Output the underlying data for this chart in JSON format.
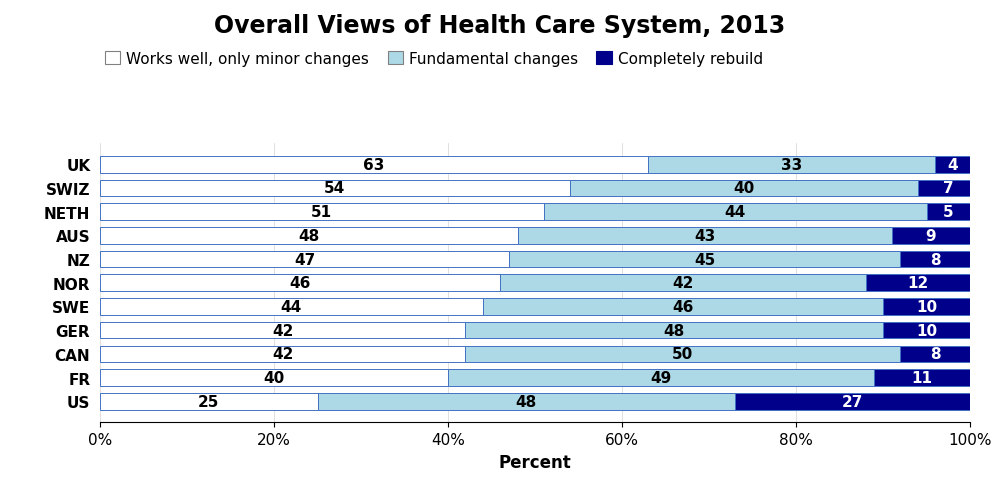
{
  "title": "Overall Views of Health Care System, 2013",
  "xlabel": "Percent",
  "categories": [
    "UK",
    "SWIZ",
    "NETH",
    "AUS",
    "NZ",
    "NOR",
    "SWE",
    "GER",
    "CAN",
    "FR",
    "US"
  ],
  "works_well": [
    63,
    54,
    51,
    48,
    47,
    46,
    44,
    42,
    42,
    40,
    25
  ],
  "fundamental": [
    33,
    40,
    44,
    43,
    45,
    42,
    46,
    48,
    50,
    49,
    48
  ],
  "rebuild": [
    4,
    7,
    5,
    9,
    8,
    12,
    10,
    10,
    8,
    11,
    27
  ],
  "color_works": "#ffffff",
  "color_fundamental": "#add8e6",
  "color_rebuild": "#00008b",
  "border_color": "#4472c4",
  "legend_labels": [
    "Works well, only minor changes",
    "Fundamental changes",
    "Completely rebuild"
  ],
  "title_fontsize": 17,
  "label_fontsize": 12,
  "tick_fontsize": 11,
  "bar_label_fontsize": 11,
  "legend_fontsize": 11
}
